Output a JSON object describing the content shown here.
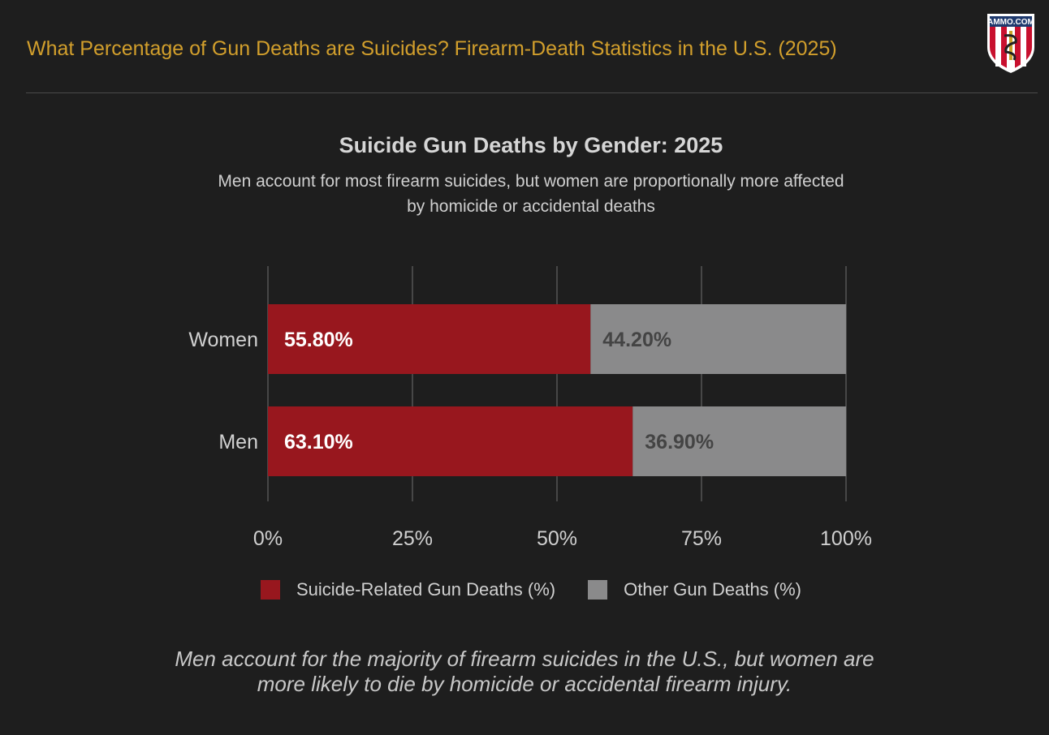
{
  "header": {
    "title": "What Percentage of Gun Deaths are Suicides? Firearm-Death Statistics in the U.S. (2025)",
    "logo_text": "AMMO.COM"
  },
  "colors": {
    "background": "#1e1e1e",
    "title": "#d29f2c",
    "suicide": "#98171e",
    "other": "#8a8a8b"
  },
  "chart_data": {
    "type": "bar",
    "orientation": "horizontal",
    "stacked": true,
    "title": "Suicide Gun Deaths by Gender: 2025",
    "subtitle_lines": [
      "Men account for most firearm suicides, but women are proportionally more affected",
      "by homicide or accidental deaths"
    ],
    "categories": [
      "Women",
      "Men"
    ],
    "series": [
      {
        "name": "Suicide-Related Gun Deaths (%)",
        "values": [
          55.8,
          63.1
        ],
        "labels": [
          "55.80%",
          "63.10%"
        ],
        "color": "#98171e"
      },
      {
        "name": "Other Gun Deaths (%)",
        "values": [
          44.2,
          36.9
        ],
        "labels": [
          "44.20%",
          "36.90%"
        ],
        "color": "#8a8a8b"
      }
    ],
    "xlim": [
      0,
      100
    ],
    "xticks": [
      0,
      25,
      50,
      75,
      100
    ],
    "xtick_labels": [
      "0%",
      "25%",
      "50%",
      "75%",
      "100%"
    ],
    "grid": true,
    "legend": "bottom"
  },
  "footer": {
    "lines": [
      "Men account for the majority of firearm suicides in the U.S., but women are",
      "more likely to die by homicide or accidental firearm injury."
    ]
  }
}
